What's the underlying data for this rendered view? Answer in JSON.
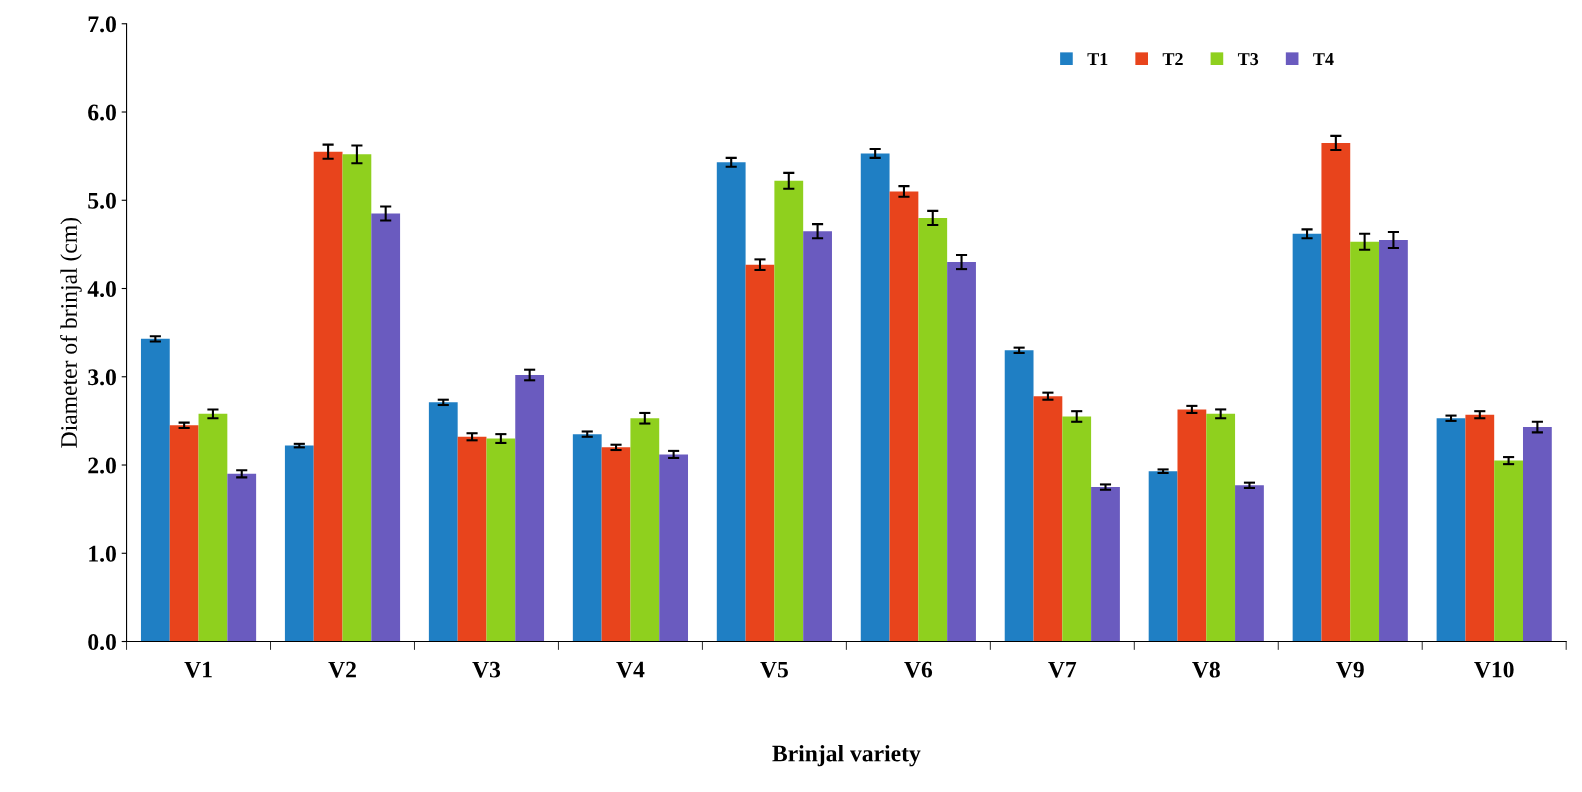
{
  "chart_data": {
    "type": "bar",
    "xlabel": "Brinjal variety",
    "ylabel": "Diameter of brinjal (cm)",
    "categories": [
      "V1",
      "V2",
      "V3",
      "V4",
      "V5",
      "V6",
      "V7",
      "V8",
      "V9",
      "V10"
    ],
    "series": [
      {
        "name": "T1",
        "color": "#1f7fc4",
        "values": [
          3.43,
          2.22,
          2.71,
          2.35,
          5.43,
          5.53,
          3.3,
          1.93,
          4.62,
          2.53
        ],
        "errors": [
          0.03,
          0.02,
          0.03,
          0.03,
          0.05,
          0.05,
          0.03,
          0.02,
          0.05,
          0.03
        ]
      },
      {
        "name": "T2",
        "color": "#e8441c",
        "values": [
          2.45,
          5.55,
          2.32,
          2.2,
          4.27,
          5.1,
          2.78,
          2.63,
          5.65,
          2.57
        ],
        "errors": [
          0.03,
          0.08,
          0.04,
          0.03,
          0.06,
          0.06,
          0.04,
          0.04,
          0.08,
          0.04
        ]
      },
      {
        "name": "T3",
        "color": "#8fd01e",
        "values": [
          2.58,
          5.52,
          2.3,
          2.53,
          5.22,
          4.8,
          2.55,
          2.58,
          4.53,
          2.05
        ],
        "errors": [
          0.05,
          0.1,
          0.05,
          0.06,
          0.09,
          0.08,
          0.06,
          0.05,
          0.09,
          0.04
        ]
      },
      {
        "name": "T4",
        "color": "#6a5bbf",
        "values": [
          1.9,
          4.85,
          3.02,
          2.12,
          4.65,
          4.3,
          1.75,
          1.77,
          4.55,
          2.43
        ],
        "errors": [
          0.04,
          0.08,
          0.06,
          0.04,
          0.08,
          0.08,
          0.03,
          0.03,
          0.09,
          0.06
        ]
      }
    ],
    "ylim": [
      0,
      7
    ],
    "yticks": [
      {
        "value": 0,
        "label": "0.0"
      },
      {
        "value": 1,
        "label": "1.0"
      },
      {
        "value": 2,
        "label": "2.0"
      },
      {
        "value": 3,
        "label": "3.0"
      },
      {
        "value": 4,
        "label": "4.0"
      },
      {
        "value": 5,
        "label": "5.0"
      },
      {
        "value": 6,
        "label": "6.0"
      },
      {
        "value": 7,
        "label": "7.0"
      }
    ],
    "legend": "top right",
    "grid": false
  }
}
